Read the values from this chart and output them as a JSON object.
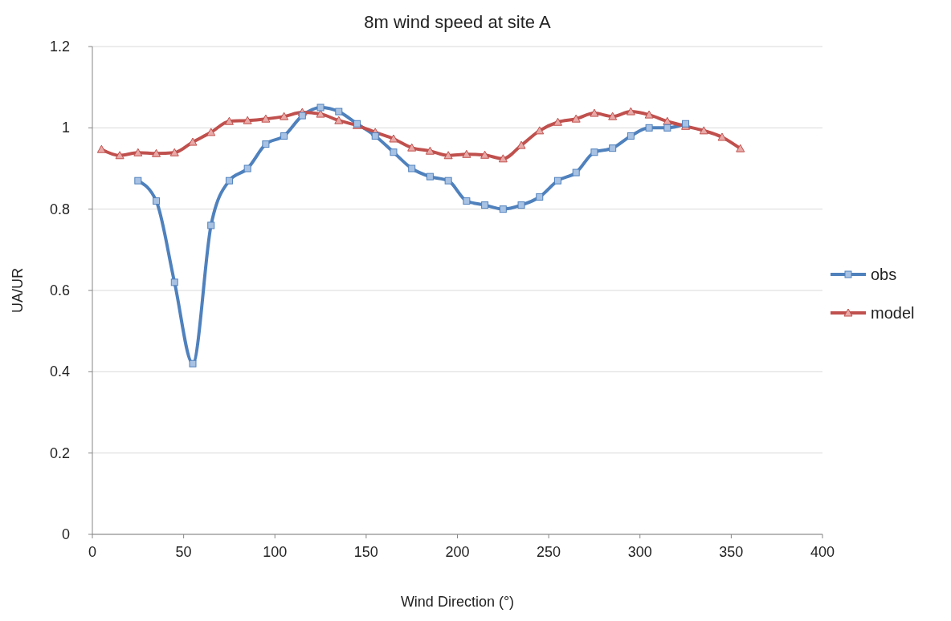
{
  "chart_data": {
    "type": "line",
    "title": "8m wind speed at site A",
    "xlabel": "Wind Direction (°)",
    "ylabel": "UA/UR",
    "xlim": [
      0,
      400
    ],
    "xticks": [
      0,
      50,
      100,
      150,
      200,
      250,
      300,
      350,
      400
    ],
    "ylim": [
      0,
      1.2
    ],
    "yticks": [
      0,
      0.2,
      0.4,
      0.6,
      0.8,
      1,
      1.2
    ],
    "grid": "y",
    "legend": "right",
    "series": [
      {
        "name": "obs",
        "color": "#4f81bd",
        "marker": "square",
        "x": [
          25,
          35,
          45,
          55,
          65,
          75,
          85,
          95,
          105,
          115,
          125,
          135,
          145,
          155,
          165,
          175,
          185,
          195,
          205,
          215,
          225,
          235,
          245,
          255,
          265,
          275,
          285,
          295,
          305,
          315,
          325
        ],
        "values": [
          0.87,
          0.82,
          0.62,
          0.42,
          0.76,
          0.87,
          0.9,
          0.96,
          0.98,
          1.03,
          1.05,
          1.04,
          1.01,
          0.98,
          0.94,
          0.9,
          0.88,
          0.87,
          0.82,
          0.81,
          0.8,
          0.81,
          0.83,
          0.87,
          0.89,
          0.94,
          0.95,
          0.98,
          1.0,
          1.0,
          1.01
        ]
      },
      {
        "name": "model",
        "color": "#c0504d",
        "marker": "triangle",
        "x": [
          5,
          15,
          25,
          35,
          45,
          55,
          65,
          75,
          85,
          95,
          105,
          115,
          125,
          135,
          145,
          155,
          165,
          175,
          185,
          195,
          205,
          215,
          225,
          235,
          245,
          255,
          265,
          275,
          285,
          295,
          305,
          315,
          325,
          335,
          345,
          355
        ],
        "values": [
          0.947,
          0.932,
          0.939,
          0.937,
          0.939,
          0.965,
          0.989,
          1.016,
          1.018,
          1.022,
          1.028,
          1.038,
          1.034,
          1.018,
          1.006,
          0.989,
          0.973,
          0.951,
          0.943,
          0.932,
          0.935,
          0.933,
          0.924,
          0.957,
          0.993,
          1.014,
          1.022,
          1.036,
          1.028,
          1.04,
          1.032,
          1.016,
          1.004,
          0.993,
          0.977,
          0.949
        ]
      }
    ]
  }
}
